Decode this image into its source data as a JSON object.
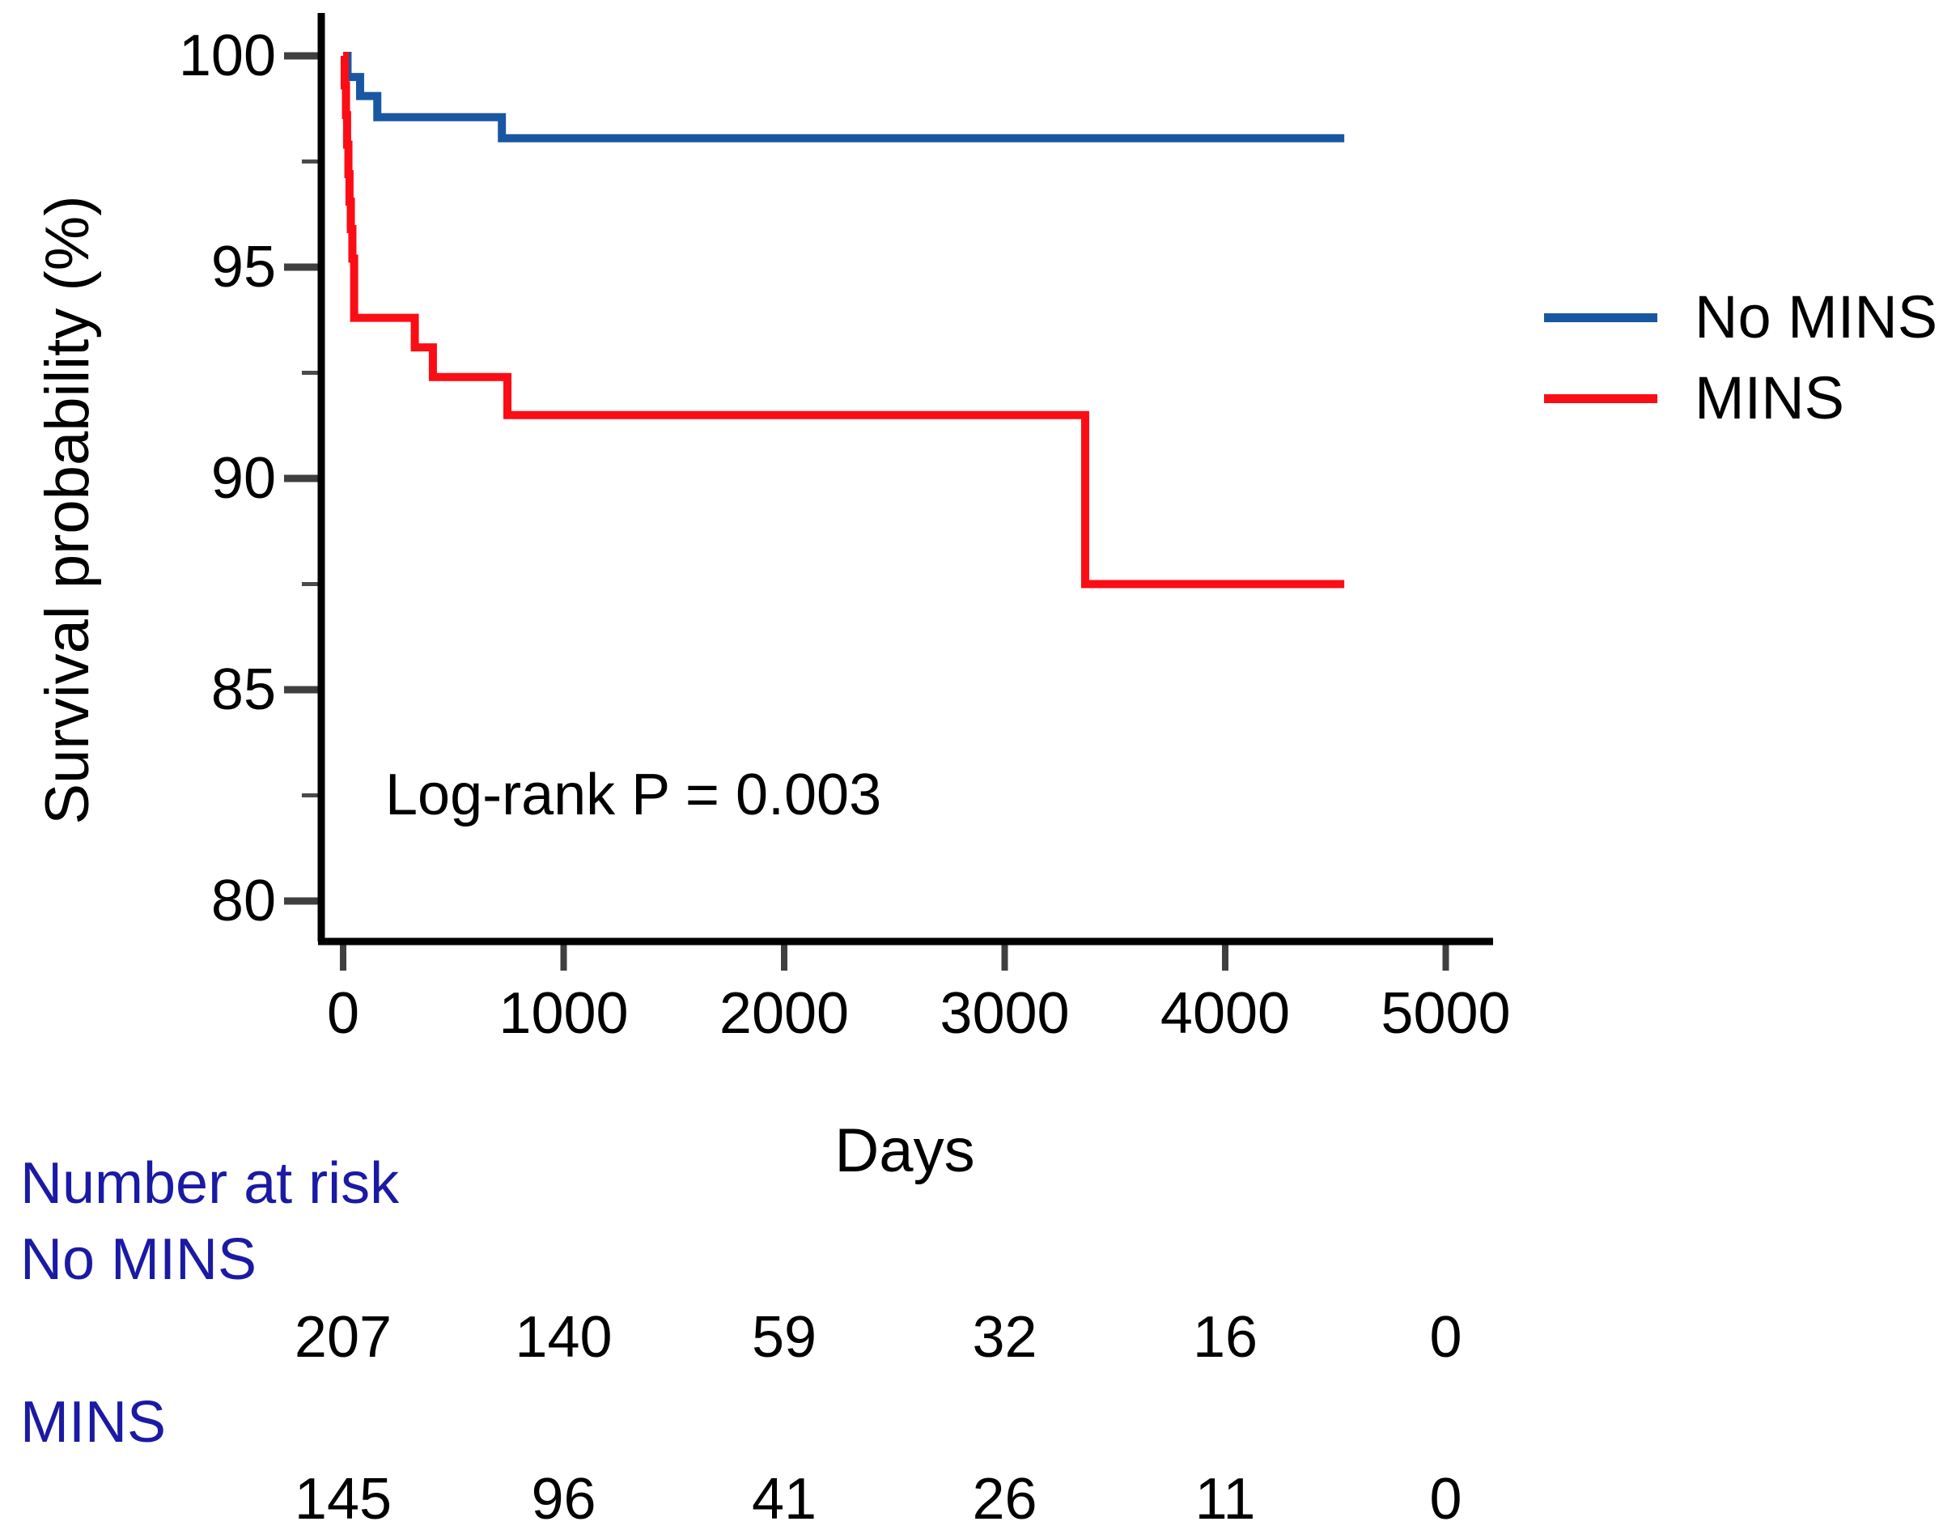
{
  "chart_data": {
    "type": "line",
    "subtype": "kaplan-meier-step",
    "title": "",
    "xlabel": "Days",
    "ylabel": "Survival probability (%)",
    "xlim": [
      0,
      5000
    ],
    "ylim": [
      80,
      100
    ],
    "x_ticks": [
      "0",
      "1000",
      "2000",
      "3000",
      "4000",
      "5000"
    ],
    "x_tick_values": [
      0,
      1000,
      2000,
      3000,
      4000,
      5000
    ],
    "y_ticks": [
      "100",
      "95",
      "90",
      "85",
      "80"
    ],
    "y_tick_values": [
      100,
      95,
      90,
      85,
      80
    ],
    "y_minor_tick_values": [
      97.5,
      92.5,
      87.5,
      82.5
    ],
    "grid": "off",
    "legend_position": "right",
    "annotation": "Log-rank P = 0.003",
    "x_end": 4540,
    "series": [
      {
        "name": "No MINS",
        "color": "#1A57A2",
        "steps": [
          [
            0,
            100
          ],
          [
            20,
            99.5
          ],
          [
            77,
            99.05
          ],
          [
            155,
            98.55
          ],
          [
            720,
            98.05
          ]
        ]
      },
      {
        "name": "MINS",
        "color": "#FB0D15",
        "steps": [
          [
            0,
            100
          ],
          [
            7,
            99.3
          ],
          [
            13,
            98.6
          ],
          [
            18,
            97.9
          ],
          [
            24,
            97.2
          ],
          [
            29,
            96.55
          ],
          [
            35,
            95.9
          ],
          [
            42,
            95.2
          ],
          [
            50,
            93.8
          ],
          [
            325,
            93.1
          ],
          [
            407,
            92.4
          ],
          [
            745,
            91.5
          ],
          [
            3365,
            87.5
          ]
        ]
      }
    ]
  },
  "risk_table": {
    "title": "Number at risk",
    "label_color": "#1A1AA4",
    "rows": [
      {
        "label": "No MINS",
        "counts": [
          "207",
          "140",
          "59",
          "32",
          "16",
          "0"
        ]
      },
      {
        "label": "MINS",
        "counts": [
          "145",
          "96",
          "41",
          "26",
          "11",
          "0"
        ]
      }
    ]
  }
}
